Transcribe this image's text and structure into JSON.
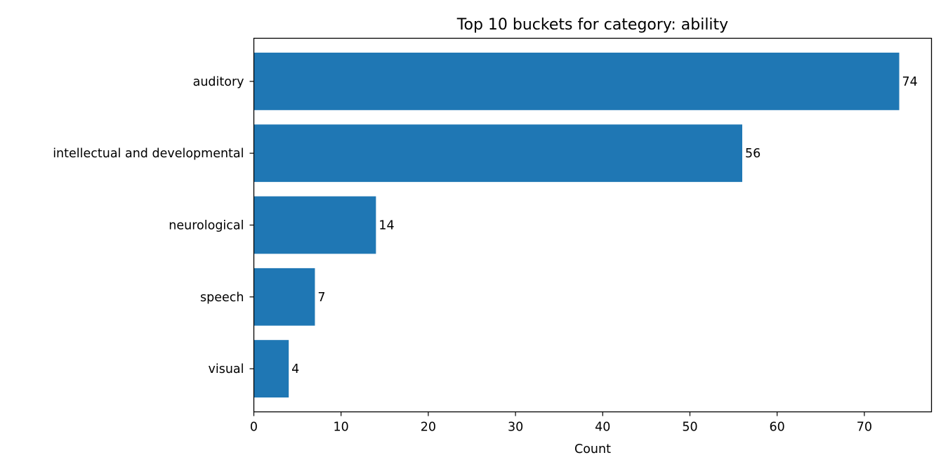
{
  "chart_data": {
    "type": "bar",
    "orientation": "horizontal",
    "title": "Top 10 buckets for category: ability",
    "xlabel": "Count",
    "ylabel": "",
    "categories": [
      "auditory",
      "intellectual and developmental",
      "neurological",
      "speech",
      "visual"
    ],
    "values": [
      74,
      56,
      14,
      7,
      4
    ],
    "data_labels": [
      "74",
      "56",
      "14",
      "7",
      "4"
    ],
    "xlim": [
      0,
      77.7
    ],
    "xticks": [
      0,
      10,
      20,
      30,
      40,
      50,
      60,
      70
    ],
    "xtick_labels": [
      "0",
      "10",
      "20",
      "30",
      "40",
      "50",
      "60",
      "70"
    ],
    "grid": false,
    "legend": "none",
    "bar_color": "#1f77b4"
  }
}
